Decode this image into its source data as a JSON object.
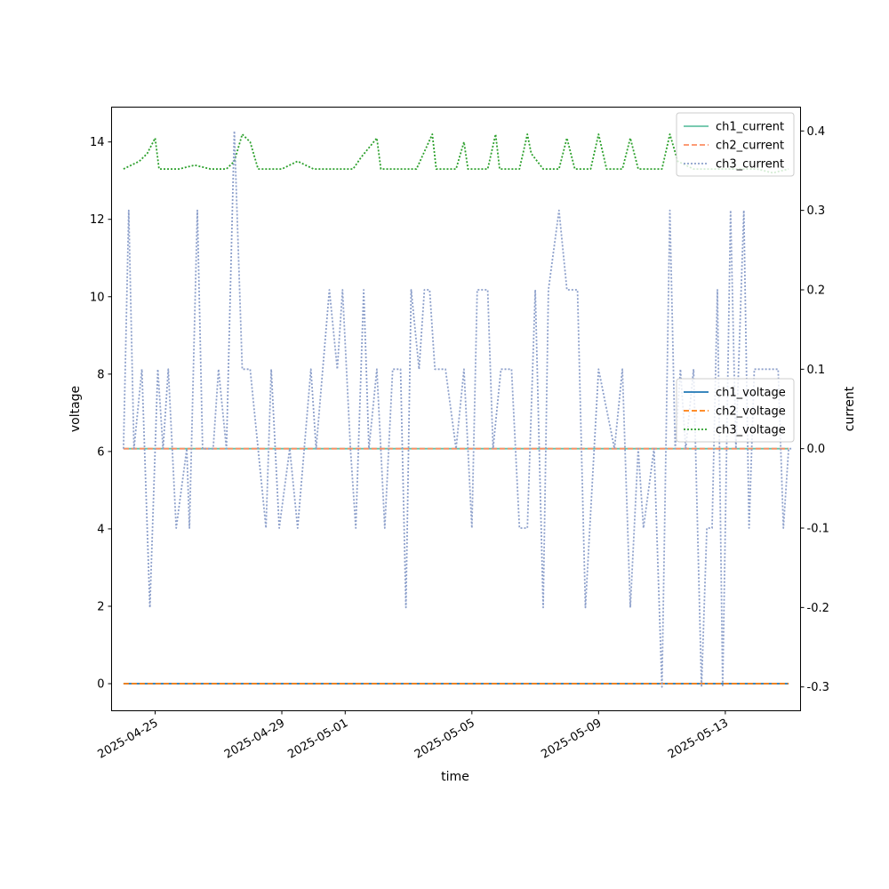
{
  "chart_data": {
    "type": "line",
    "title": "",
    "xlabel": "time",
    "ylabel_left": "voltage",
    "ylabel_right": "current",
    "x_ticks": [
      "2025-04-25",
      "2025-04-29",
      "2025-05-01",
      "2025-05-05",
      "2025-05-09",
      "2025-05-13"
    ],
    "xlim": [
      "2025-04-23T15:00",
      "2025-05-15T09:00"
    ],
    "y_left_lim": [
      -0.7,
      14.9
    ],
    "y_right_lim": [
      -0.33,
      0.43
    ],
    "y_left_ticks": [
      0,
      2,
      4,
      6,
      8,
      10,
      12,
      14
    ],
    "y_right_ticks": [
      -0.3,
      -0.2,
      -0.1,
      0.0,
      0.1,
      0.2,
      0.3,
      0.4
    ],
    "grid": false,
    "legend_current": {
      "placement": "top-right",
      "entries": [
        "ch1_current",
        "ch2_current",
        "ch3_current"
      ]
    },
    "legend_voltage": {
      "placement": "center-right",
      "entries": [
        "ch1_voltage",
        "ch2_voltage",
        "ch3_voltage"
      ]
    },
    "series": [
      {
        "name": "ch1_voltage",
        "axis": "left",
        "color": "#1f77b4",
        "style": "solid",
        "points": [
          [
            "2025-04-24T00:00",
            0
          ],
          [
            "2025-05-15T00:00",
            0
          ]
        ]
      },
      {
        "name": "ch2_voltage",
        "axis": "left",
        "color": "#ff7f0e",
        "style": "dashed",
        "points": [
          [
            "2025-04-24T00:00",
            0
          ],
          [
            "2025-05-15T00:00",
            0
          ]
        ]
      },
      {
        "name": "ch3_voltage",
        "axis": "left",
        "color": "#2ca02c",
        "style": "dotted",
        "points": [
          [
            "2025-04-24T00:00",
            13.3
          ],
          [
            "2025-04-24T12:00",
            13.5
          ],
          [
            "2025-04-24T18:00",
            13.7
          ],
          [
            "2025-04-25T00:00",
            14.1
          ],
          [
            "2025-04-25T03:00",
            13.3
          ],
          [
            "2025-04-25T18:00",
            13.3
          ],
          [
            "2025-04-26T06:00",
            13.4
          ],
          [
            "2025-04-26T18:00",
            13.3
          ],
          [
            "2025-04-27T06:00",
            13.3
          ],
          [
            "2025-04-27T12:00",
            13.5
          ],
          [
            "2025-04-27T18:00",
            14.2
          ],
          [
            "2025-04-28T00:00",
            14.0
          ],
          [
            "2025-04-28T06:00",
            13.3
          ],
          [
            "2025-04-29T00:00",
            13.3
          ],
          [
            "2025-04-29T12:00",
            13.5
          ],
          [
            "2025-04-29T18:00",
            13.4
          ],
          [
            "2025-04-30T00:00",
            13.3
          ],
          [
            "2025-04-30T06:00",
            13.3
          ],
          [
            "2025-04-30T18:00",
            13.3
          ],
          [
            "2025-05-01T06:00",
            13.3
          ],
          [
            "2025-05-01T12:00",
            13.6
          ],
          [
            "2025-05-02T00:00",
            14.1
          ],
          [
            "2025-05-02T03:00",
            13.3
          ],
          [
            "2025-05-02T18:00",
            13.3
          ],
          [
            "2025-05-03T06:00",
            13.3
          ],
          [
            "2025-05-03T18:00",
            14.2
          ],
          [
            "2025-05-03T21:00",
            13.3
          ],
          [
            "2025-05-04T12:00",
            13.3
          ],
          [
            "2025-05-04T18:00",
            14.0
          ],
          [
            "2025-05-04T21:00",
            13.3
          ],
          [
            "2025-05-05T12:00",
            13.3
          ],
          [
            "2025-05-05T18:00",
            14.2
          ],
          [
            "2025-05-05T21:00",
            13.3
          ],
          [
            "2025-05-06T12:00",
            13.3
          ],
          [
            "2025-05-06T18:00",
            14.2
          ],
          [
            "2025-05-06T21:00",
            13.7
          ],
          [
            "2025-05-07T06:00",
            13.3
          ],
          [
            "2025-05-07T18:00",
            13.3
          ],
          [
            "2025-05-08T00:00",
            14.1
          ],
          [
            "2025-05-08T06:00",
            13.3
          ],
          [
            "2025-05-08T18:00",
            13.3
          ],
          [
            "2025-05-09T00:00",
            14.2
          ],
          [
            "2025-05-09T06:00",
            13.3
          ],
          [
            "2025-05-09T18:00",
            13.3
          ],
          [
            "2025-05-10T00:00",
            14.1
          ],
          [
            "2025-05-10T06:00",
            13.3
          ],
          [
            "2025-05-11T00:00",
            13.3
          ],
          [
            "2025-05-11T06:00",
            14.2
          ],
          [
            "2025-05-11T12:00",
            13.5
          ],
          [
            "2025-05-12T00:00",
            13.3
          ],
          [
            "2025-05-12T18:00",
            13.3
          ],
          [
            "2025-05-13T06:00",
            13.3
          ],
          [
            "2025-05-14T00:00",
            13.3
          ],
          [
            "2025-05-14T12:00",
            13.2
          ],
          [
            "2025-05-15T00:00",
            13.3
          ]
        ]
      },
      {
        "name": "ch1_current",
        "axis": "right",
        "color": "#66c2a5",
        "style": "solid",
        "points": [
          [
            "2025-04-24T00:00",
            0
          ],
          [
            "2025-05-15T00:00",
            0
          ]
        ]
      },
      {
        "name": "ch2_current",
        "axis": "right",
        "color": "#fc8d62",
        "style": "dashed",
        "points": [
          [
            "2025-04-24T00:00",
            0
          ],
          [
            "2025-05-15T00:00",
            0
          ]
        ]
      },
      {
        "name": "ch3_current",
        "axis": "right",
        "color": "#8da0cb",
        "style": "dotted",
        "points": [
          [
            "2025-04-24T00:00",
            0.0
          ],
          [
            "2025-04-24T04:00",
            0.3
          ],
          [
            "2025-04-24T08:00",
            0.0
          ],
          [
            "2025-04-24T14:00",
            0.1
          ],
          [
            "2025-04-24T20:00",
            -0.2
          ],
          [
            "2025-04-25T02:00",
            0.1
          ],
          [
            "2025-04-25T06:00",
            0.0
          ],
          [
            "2025-04-25T10:00",
            0.1
          ],
          [
            "2025-04-25T16:00",
            -0.1
          ],
          [
            "2025-04-26T00:00",
            0.0
          ],
          [
            "2025-04-26T02:00",
            -0.1
          ],
          [
            "2025-04-26T08:00",
            0.3
          ],
          [
            "2025-04-26T12:00",
            0.0
          ],
          [
            "2025-04-26T20:00",
            0.0
          ],
          [
            "2025-04-27T00:00",
            0.1
          ],
          [
            "2025-04-27T06:00",
            0.0
          ],
          [
            "2025-04-27T12:00",
            0.4
          ],
          [
            "2025-04-27T18:00",
            0.1
          ],
          [
            "2025-04-28T00:00",
            0.1
          ],
          [
            "2025-04-28T12:00",
            -0.1
          ],
          [
            "2025-04-28T16:00",
            0.1
          ],
          [
            "2025-04-28T22:00",
            -0.1
          ],
          [
            "2025-04-29T06:00",
            0.0
          ],
          [
            "2025-04-29T12:00",
            -0.1
          ],
          [
            "2025-04-29T22:00",
            0.1
          ],
          [
            "2025-04-30T02:00",
            0.0
          ],
          [
            "2025-04-30T12:00",
            0.2
          ],
          [
            "2025-04-30T18:00",
            0.1
          ],
          [
            "2025-04-30T22:00",
            0.2
          ],
          [
            "2025-05-01T04:00",
            0.0
          ],
          [
            "2025-05-01T08:00",
            -0.1
          ],
          [
            "2025-05-01T14:00",
            0.2
          ],
          [
            "2025-05-01T18:00",
            0.0
          ],
          [
            "2025-05-02T00:00",
            0.1
          ],
          [
            "2025-05-02T06:00",
            -0.1
          ],
          [
            "2025-05-02T12:00",
            0.1
          ],
          [
            "2025-05-02T18:00",
            0.1
          ],
          [
            "2025-05-02T22:00",
            -0.2
          ],
          [
            "2025-05-03T02:00",
            0.2
          ],
          [
            "2025-05-03T08:00",
            0.1
          ],
          [
            "2025-05-03T12:00",
            0.2
          ],
          [
            "2025-05-03T16:00",
            0.2
          ],
          [
            "2025-05-03T20:00",
            0.1
          ],
          [
            "2025-05-04T04:00",
            0.1
          ],
          [
            "2025-05-04T12:00",
            0.0
          ],
          [
            "2025-05-04T18:00",
            0.1
          ],
          [
            "2025-05-05T00:00",
            -0.1
          ],
          [
            "2025-05-05T04:00",
            0.2
          ],
          [
            "2025-05-05T12:00",
            0.2
          ],
          [
            "2025-05-05T16:00",
            0.0
          ],
          [
            "2025-05-05T22:00",
            0.1
          ],
          [
            "2025-05-06T02:00",
            0.1
          ],
          [
            "2025-05-06T06:00",
            0.1
          ],
          [
            "2025-05-06T12:00",
            -0.1
          ],
          [
            "2025-05-06T18:00",
            -0.1
          ],
          [
            "2025-05-07T00:00",
            0.2
          ],
          [
            "2025-05-07T06:00",
            -0.2
          ],
          [
            "2025-05-07T10:00",
            0.2
          ],
          [
            "2025-05-07T18:00",
            0.3
          ],
          [
            "2025-05-08T00:00",
            0.2
          ],
          [
            "2025-05-08T08:00",
            0.2
          ],
          [
            "2025-05-08T14:00",
            -0.2
          ],
          [
            "2025-05-09T00:00",
            0.1
          ],
          [
            "2025-05-09T12:00",
            0.0
          ],
          [
            "2025-05-09T18:00",
            0.1
          ],
          [
            "2025-05-10T00:00",
            -0.2
          ],
          [
            "2025-05-10T06:00",
            0.0
          ],
          [
            "2025-05-10T10:00",
            -0.1
          ],
          [
            "2025-05-10T18:00",
            0.0
          ],
          [
            "2025-05-11T00:00",
            -0.3
          ],
          [
            "2025-05-11T06:00",
            0.3
          ],
          [
            "2025-05-11T10:00",
            0.0
          ],
          [
            "2025-05-11T14:00",
            0.1
          ],
          [
            "2025-05-11T18:00",
            0.0
          ],
          [
            "2025-05-12T00:00",
            0.1
          ],
          [
            "2025-05-12T06:00",
            -0.3
          ],
          [
            "2025-05-12T10:00",
            -0.1
          ],
          [
            "2025-05-12T14:00",
            -0.1
          ],
          [
            "2025-05-12T18:00",
            0.2
          ],
          [
            "2025-05-12T22:00",
            -0.3
          ],
          [
            "2025-05-13T04:00",
            0.3
          ],
          [
            "2025-05-13T08:00",
            0.0
          ],
          [
            "2025-05-13T14:00",
            0.3
          ],
          [
            "2025-05-13T18:00",
            -0.1
          ],
          [
            "2025-05-13T22:00",
            0.1
          ],
          [
            "2025-05-14T06:00",
            0.1
          ],
          [
            "2025-05-14T12:00",
            0.1
          ],
          [
            "2025-05-14T16:00",
            0.1
          ],
          [
            "2025-05-14T20:00",
            -0.1
          ],
          [
            "2025-05-15T00:00",
            0.0
          ],
          [
            "2025-05-15T02:00",
            0.0
          ]
        ]
      }
    ]
  }
}
